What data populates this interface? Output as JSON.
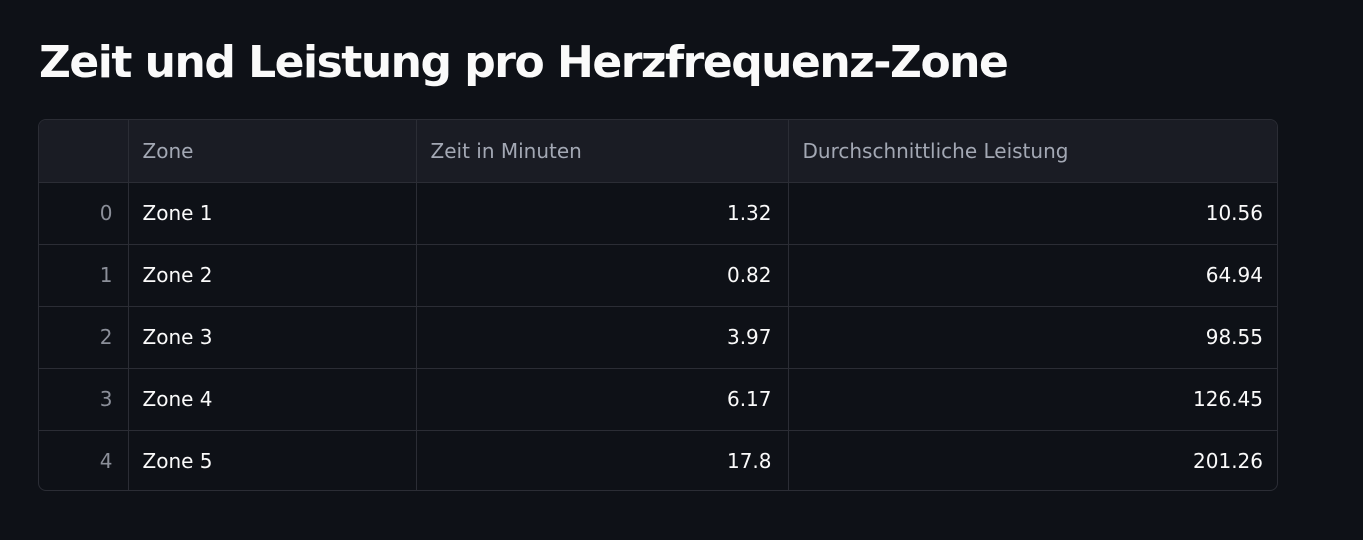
{
  "title": "Zeit und Leistung pro Herzfrequenz-Zone",
  "table": {
    "columns": [
      "",
      "Zone",
      "Zeit in Minuten",
      "Durchschnittliche Leistung"
    ],
    "rows": [
      {
        "index": "0",
        "zone": "Zone 1",
        "minutes": "1.32",
        "power": "10.56"
      },
      {
        "index": "1",
        "zone": "Zone 2",
        "minutes": "0.82",
        "power": "64.94"
      },
      {
        "index": "2",
        "zone": "Zone 3",
        "minutes": "3.97",
        "power": "98.55"
      },
      {
        "index": "3",
        "zone": "Zone 4",
        "minutes": "6.17",
        "power": "126.45"
      },
      {
        "index": "4",
        "zone": "Zone 5",
        "minutes": "17.8",
        "power": "201.26"
      }
    ]
  },
  "colors": {
    "background": "#0e1117",
    "header_background": "#1a1c24",
    "border": "#2b2d35",
    "text": "#fafafa",
    "muted_text": "#a3a8b4"
  }
}
